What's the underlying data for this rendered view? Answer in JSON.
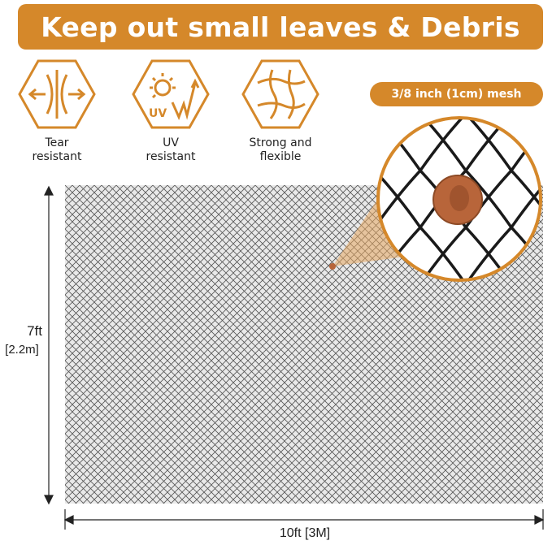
{
  "banner": {
    "title": "Keep out small leaves & Debris"
  },
  "features": [
    {
      "icon": "tear-resistant-icon",
      "line1": "Tear",
      "line2": "resistant"
    },
    {
      "icon": "uv-resistant-icon",
      "line1": "UV",
      "line2": "resistant",
      "icon_text": "UV"
    },
    {
      "icon": "strong-flexible-icon",
      "line1": "Strong and",
      "line2": "flexible"
    }
  ],
  "mesh_label": "3/8 inch (1cm) mesh",
  "dimensions": {
    "height_ft": "7ft",
    "height_m": "[2.2m]",
    "width": "10ft [3M]"
  },
  "colors": {
    "accent": "#d5882a",
    "net": "#555555",
    "penny": "#b8653a"
  }
}
